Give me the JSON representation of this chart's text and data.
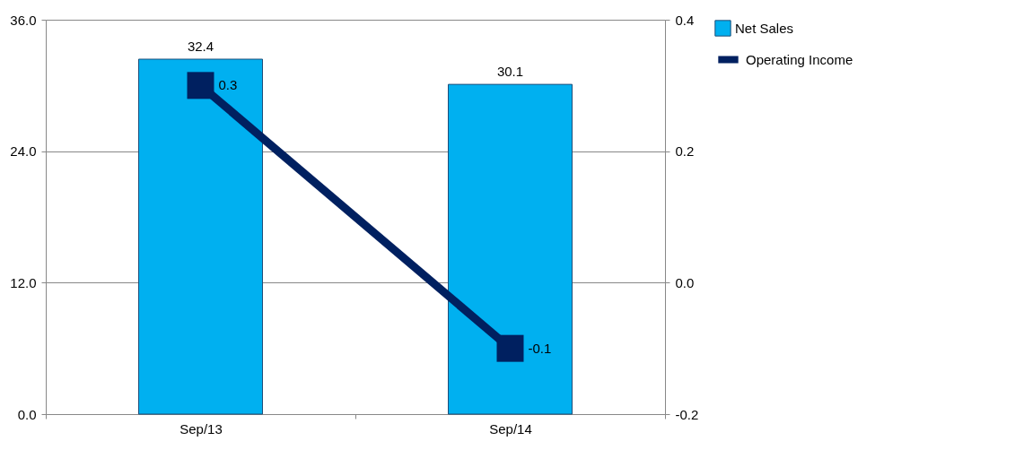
{
  "chart_data": {
    "type": "bar",
    "categories": [
      "Sep/13",
      "Sep/14"
    ],
    "series": [
      {
        "name": "Net Sales",
        "color": "#00b0f0",
        "values": [
          32.4,
          30.1
        ]
      },
      {
        "name": "Operating Income",
        "type": "line",
        "axis": "y2",
        "color": "#002060",
        "values": [
          0.3,
          -0.1
        ]
      }
    ],
    "ylim": [
      0,
      36
    ],
    "yticks": [
      {
        "value": 0,
        "label": "0.0"
      },
      {
        "value": 12,
        "label": "12.0"
      },
      {
        "value": 24,
        "label": "24.0"
      },
      {
        "value": 36,
        "label": "36.0"
      }
    ],
    "y2lim": [
      -0.2,
      0.4
    ],
    "y2ticks": [
      {
        "value": -0.2,
        "label": "-0.2"
      },
      {
        "value": 0,
        "label": "0.0"
      },
      {
        "value": 0.2,
        "label": "0.2"
      },
      {
        "value": 0.4,
        "label": "0.4"
      }
    ],
    "grid": "y",
    "legend": "right",
    "marker": "square",
    "data_labels": true
  }
}
